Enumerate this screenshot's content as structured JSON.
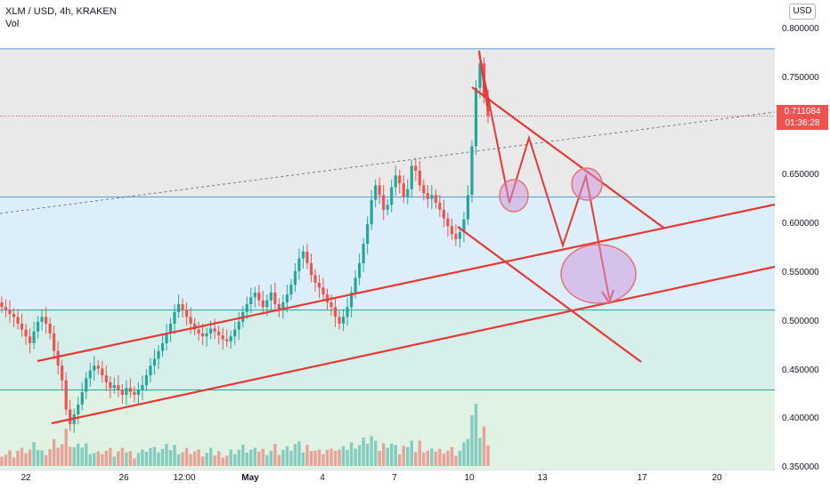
{
  "header": {
    "symbol_line": "XLM / USD, 4h, KRAKEN",
    "indicator": "Vol"
  },
  "price_axis": {
    "currency_label": "USD",
    "ticks": [
      "0.800000",
      "0.750000",
      "0.650000",
      "0.600000",
      "0.550000",
      "0.500000",
      "0.450000",
      "0.400000",
      "0.350000"
    ],
    "last_price": "0.711084",
    "countdown": "01:36:28"
  },
  "time_axis": {
    "ticks": [
      "22",
      "26",
      "12:00",
      "May",
      "4",
      "7",
      "10",
      "13",
      "17",
      "20"
    ]
  },
  "colors": {
    "up": "#26a69a",
    "down": "#ef5350",
    "drawing": "#e53935",
    "zone_gray": "#e9e9ea",
    "zone_blue": "#ddeefb",
    "zone_teal": "#d6efea",
    "zone_green": "#e0f2e3"
  },
  "chart_data": {
    "type": "candlestick",
    "title": "",
    "xlabel": "",
    "ylabel": "",
    "symbol": "XLM / USD, 4h, KRAKEN",
    "ylim": [
      0.34,
      0.82
    ],
    "x_ticks": [
      "22",
      "26",
      "12:00",
      "May",
      "4",
      "7",
      "10",
      "13",
      "17",
      "20"
    ],
    "y_ticks": [
      0.35,
      0.4,
      0.45,
      0.5,
      0.55,
      0.6,
      0.65,
      0.75,
      0.8
    ],
    "close_series": [
      0.515,
      0.512,
      0.508,
      0.505,
      0.498,
      0.492,
      0.485,
      0.478,
      0.49,
      0.5,
      0.505,
      0.498,
      0.488,
      0.47,
      0.455,
      0.44,
      0.41,
      0.395,
      0.405,
      0.415,
      0.428,
      0.442,
      0.45,
      0.455,
      0.452,
      0.445,
      0.438,
      0.432,
      0.435,
      0.43,
      0.425,
      0.432,
      0.428,
      0.425,
      0.43,
      0.435,
      0.445,
      0.455,
      0.462,
      0.47,
      0.478,
      0.488,
      0.498,
      0.51,
      0.518,
      0.512,
      0.505,
      0.498,
      0.492,
      0.488,
      0.485,
      0.488,
      0.493,
      0.49,
      0.486,
      0.482,
      0.48,
      0.485,
      0.492,
      0.5,
      0.51,
      0.518,
      0.525,
      0.53,
      0.522,
      0.515,
      0.522,
      0.53,
      0.518,
      0.512,
      0.52,
      0.528,
      0.538,
      0.552,
      0.565,
      0.572,
      0.56,
      0.548,
      0.54,
      0.535,
      0.528,
      0.52,
      0.515,
      0.505,
      0.498,
      0.505,
      0.515,
      0.53,
      0.545,
      0.56,
      0.58,
      0.6,
      0.625,
      0.64,
      0.63,
      0.615,
      0.62,
      0.638,
      0.65,
      0.642,
      0.628,
      0.636,
      0.66,
      0.655,
      0.64,
      0.632,
      0.626,
      0.63,
      0.622,
      0.615,
      0.606,
      0.598,
      0.59,
      0.585,
      0.592,
      0.605,
      0.63,
      0.68,
      0.74,
      0.765,
      0.73,
      0.711
    ],
    "volume_bars": 120,
    "horizontal_levels": [
      0.78,
      0.711084,
      0.628,
      0.512,
      0.43,
      0.346
    ],
    "zones": [
      {
        "from": 0.628,
        "to": 0.78,
        "color": "gray"
      },
      {
        "from": 0.512,
        "to": 0.628,
        "color": "blue"
      },
      {
        "from": 0.43,
        "to": 0.512,
        "color": "teal"
      },
      {
        "from": 0.346,
        "to": 0.43,
        "color": "green"
      }
    ]
  }
}
